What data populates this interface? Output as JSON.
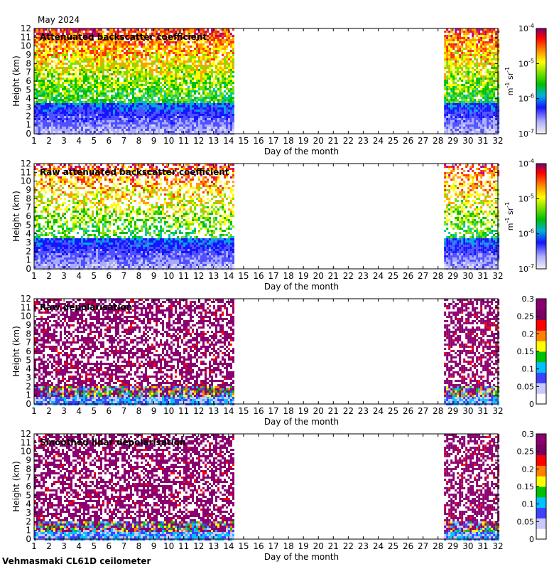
{
  "header": {
    "title": "May 2024"
  },
  "footer": {
    "site": "Vehmasmaki CL61D ceilometer"
  },
  "chart_data": [
    {
      "type": "heatmap",
      "title": "Attenuated backscatter coefficient",
      "xlabel": "Day of the month",
      "ylabel": "Height (km)",
      "xlim": [
        1,
        32
      ],
      "ylim": [
        0,
        12
      ],
      "x_ticks": [
        1,
        2,
        3,
        4,
        5,
        6,
        7,
        8,
        9,
        10,
        11,
        12,
        13,
        14,
        15,
        16,
        17,
        18,
        19,
        20,
        21,
        22,
        23,
        24,
        25,
        26,
        27,
        28,
        29,
        30,
        31,
        32
      ],
      "y_ticks": [
        0,
        1,
        2,
        3,
        4,
        5,
        6,
        7,
        8,
        9,
        10,
        11,
        12
      ],
      "data_coverage_days": [
        [
          1,
          14.3
        ],
        [
          28.4,
          32
        ]
      ],
      "colorbar": {
        "scale": "log",
        "range": [
          1e-07,
          0.0001
        ],
        "tick_labels": [
          [
            "10",
            "-7"
          ],
          [
            "10",
            "-6"
          ],
          [
            "10",
            "-5"
          ],
          [
            "10",
            "-4"
          ]
        ],
        "unit": [
          "m",
          "-1",
          " sr",
          "-1"
        ]
      }
    },
    {
      "type": "heatmap",
      "title": "Raw attenuated backscatter coefficient",
      "xlabel": "Day of the month",
      "ylabel": "Height (km)",
      "xlim": [
        1,
        32
      ],
      "ylim": [
        0,
        12
      ],
      "x_ticks": [
        1,
        2,
        3,
        4,
        5,
        6,
        7,
        8,
        9,
        10,
        11,
        12,
        13,
        14,
        15,
        16,
        17,
        18,
        19,
        20,
        21,
        22,
        23,
        24,
        25,
        26,
        27,
        28,
        29,
        30,
        31,
        32
      ],
      "y_ticks": [
        0,
        1,
        2,
        3,
        4,
        5,
        6,
        7,
        8,
        9,
        10,
        11,
        12
      ],
      "data_coverage_days": [
        [
          1,
          14.3
        ],
        [
          28.4,
          32
        ]
      ],
      "colorbar": {
        "scale": "log",
        "range": [
          1e-07,
          0.0001
        ],
        "tick_labels": [
          [
            "10",
            "-7"
          ],
          [
            "10",
            "-6"
          ],
          [
            "10",
            "-5"
          ],
          [
            "10",
            "-4"
          ]
        ],
        "unit": [
          "m",
          "-1",
          " sr",
          "-1"
        ]
      }
    },
    {
      "type": "heatmap",
      "title": "Raw depolarisation",
      "xlabel": "Day of the month",
      "ylabel": "Height (km)",
      "xlim": [
        1,
        32
      ],
      "ylim": [
        0,
        12
      ],
      "x_ticks": [
        1,
        2,
        3,
        4,
        5,
        6,
        7,
        8,
        9,
        10,
        11,
        12,
        13,
        14,
        15,
        16,
        17,
        18,
        19,
        20,
        21,
        22,
        23,
        24,
        25,
        26,
        27,
        28,
        29,
        30,
        31,
        32
      ],
      "y_ticks": [
        0,
        1,
        2,
        3,
        4,
        5,
        6,
        7,
        8,
        9,
        10,
        11,
        12
      ],
      "data_coverage_days": [
        [
          1,
          14.3
        ],
        [
          28.4,
          32
        ]
      ],
      "colorbar": {
        "scale": "linear",
        "range": [
          0,
          0.3
        ],
        "tick_labels": [
          "0",
          "0.05",
          "0.1",
          "0.15",
          "0.2",
          "0.25",
          "0.3"
        ]
      }
    },
    {
      "type": "heatmap",
      "title": "Smoothed lidar depolarisation",
      "xlabel": "Day of the month",
      "ylabel": "Height (km)",
      "xlim": [
        1,
        32
      ],
      "ylim": [
        0,
        12
      ],
      "x_ticks": [
        1,
        2,
        3,
        4,
        5,
        6,
        7,
        8,
        9,
        10,
        11,
        12,
        13,
        14,
        15,
        16,
        17,
        18,
        19,
        20,
        21,
        22,
        23,
        24,
        25,
        26,
        27,
        28,
        29,
        30,
        31,
        32
      ],
      "y_ticks": [
        0,
        1,
        2,
        3,
        4,
        5,
        6,
        7,
        8,
        9,
        10,
        11,
        12
      ],
      "data_coverage_days": [
        [
          1,
          14.3
        ],
        [
          28.4,
          32
        ]
      ],
      "colorbar": {
        "scale": "linear",
        "range": [
          0,
          0.3
        ],
        "tick_labels": [
          "0",
          "0.05",
          "0.1",
          "0.15",
          "0.2",
          "0.25",
          "0.3"
        ]
      }
    }
  ]
}
